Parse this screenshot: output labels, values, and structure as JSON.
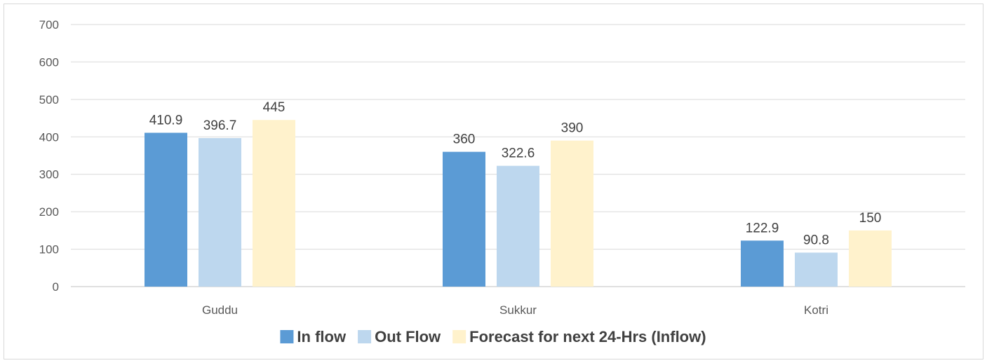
{
  "chart_data": {
    "type": "bar",
    "title": "",
    "xlabel": "",
    "ylabel": "",
    "categories": [
      "Guddu",
      "Sukkur",
      "Kotri"
    ],
    "series": [
      {
        "name": "In flow",
        "color": "#5b9bd5",
        "values": [
          410.9,
          360,
          122.9
        ],
        "labels": [
          "410.9",
          "360",
          "122.9"
        ]
      },
      {
        "name": "Out Flow",
        "color": "#bdd7ee",
        "values": [
          396.7,
          322.6,
          90.8
        ],
        "labels": [
          "396.7",
          "322.6",
          "90.8"
        ]
      },
      {
        "name": "Forecast for next 24-Hrs (Inflow)",
        "color": "#fff2cc",
        "values": [
          445,
          390,
          150
        ],
        "labels": [
          "445",
          "390",
          "150"
        ]
      }
    ],
    "ylim": [
      0,
      700
    ],
    "yticks": [
      "0",
      "100",
      "200",
      "300",
      "400",
      "500",
      "600",
      "700"
    ],
    "grid": true,
    "legend_position": "bottom"
  }
}
